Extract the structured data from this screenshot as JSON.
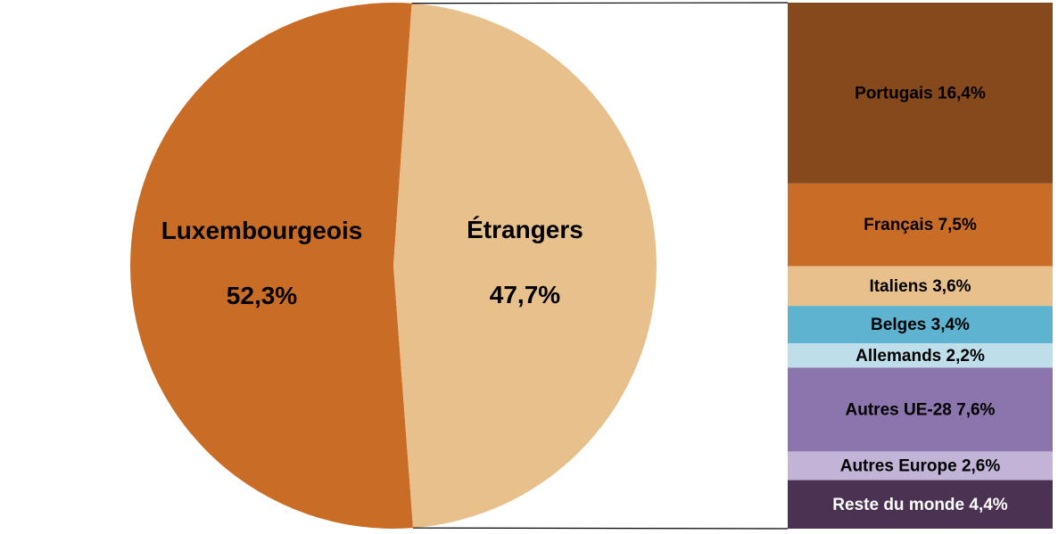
{
  "chart_data": {
    "type": "pie",
    "categories": [
      "Luxembourgeois",
      "Étrangers"
    ],
    "values": [
      52.3,
      47.7
    ],
    "value_labels": [
      "52,3%",
      "47,7%"
    ],
    "colors": [
      "#c96d26",
      "#e8c08c"
    ],
    "breakdown": {
      "type": "stacked-bar",
      "categories": [
        "Portugais",
        "Français",
        "Italiens",
        "Belges",
        "Allemands",
        "Autres UE-28",
        "Autres Europe",
        "Reste du monde"
      ],
      "values": [
        16.4,
        7.5,
        3.6,
        3.4,
        2.2,
        7.6,
        2.6,
        4.4
      ],
      "value_labels": [
        "16,4%",
        "7,5%",
        "3,6%",
        "3,4%",
        "2,2%",
        "7,6%",
        "2,6%",
        "4,4%"
      ],
      "colors": [
        "#85491c",
        "#c96d26",
        "#e8c08c",
        "#5eb3d0",
        "#bedfea",
        "#8c74ac",
        "#c2b4d6",
        "#4b3152"
      ]
    }
  }
}
